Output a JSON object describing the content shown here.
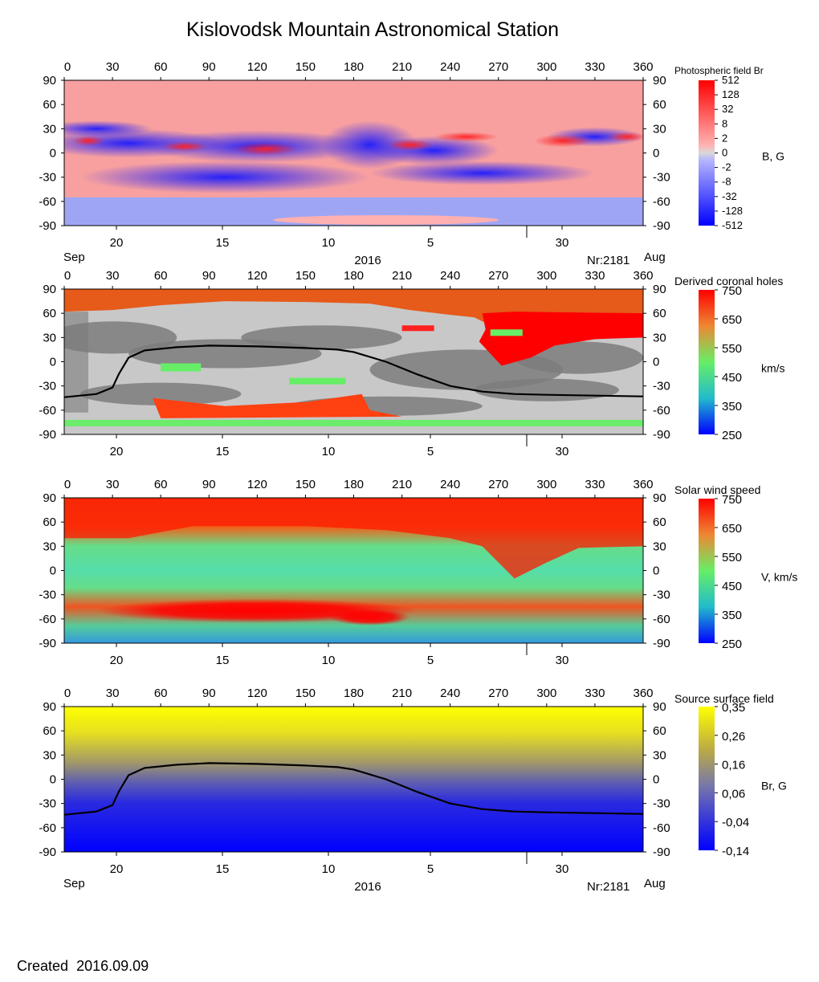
{
  "title": "Kislovodsk Mountain Astronomical Station",
  "footer": {
    "label": "Created",
    "date": "2016.09.09"
  },
  "colors": {
    "field_pos": "#ff2020",
    "field_neg": "#1a1aff",
    "field_zero": "#d8d8d8",
    "ch_light": "#c8c8c8",
    "ch_dark": "#7c7c7c",
    "speed_low": "#0000ff",
    "speed_mid": "#55ee88",
    "speed_high": "#ff0000",
    "ss_pos": "#ffff00",
    "ss_neg": "#0000ff",
    "neutral_line": "#000000"
  },
  "chart_data": [
    {
      "type": "heatmap",
      "title": "Photospheric field Br",
      "colorbar_label": "B, G",
      "colorbar_ticks": [
        "512",
        "128",
        "32",
        "8",
        "2",
        "0",
        "-2",
        "-8",
        "-32",
        "-128",
        "-512"
      ],
      "x_top_ticks": [
        "0",
        "30",
        "60",
        "90",
        "120",
        "150",
        "180",
        "210",
        "240",
        "270",
        "300",
        "330",
        "360"
      ],
      "y_ticks": [
        "90",
        "60",
        "30",
        "0",
        "-30",
        "-60",
        "-90"
      ],
      "x_bottom_ticks": [
        "20",
        "15",
        "10",
        "5",
        "30"
      ],
      "bottom_labels": {
        "left": "Sep",
        "center": "2016",
        "rotation": "Nr:2181",
        "right": "Aug"
      },
      "xlim": [
        0,
        360
      ],
      "ylim": [
        -90,
        90
      ]
    },
    {
      "type": "heatmap",
      "title": "Derived coronal holes",
      "colorbar_label": "km/s",
      "colorbar_ticks": [
        "750",
        "650",
        "550",
        "450",
        "350",
        "250"
      ],
      "x_top_ticks": [
        "0",
        "30",
        "60",
        "90",
        "120",
        "150",
        "180",
        "210",
        "240",
        "270",
        "300",
        "330",
        "360"
      ],
      "y_ticks": [
        "90",
        "60",
        "30",
        "0",
        "-30",
        "-60",
        "-90"
      ],
      "x_bottom_ticks": [
        "20",
        "15",
        "10",
        "5",
        "30"
      ],
      "xlim": [
        0,
        360
      ],
      "ylim": [
        -90,
        90
      ],
      "neutral_line": [
        [
          0,
          -44
        ],
        [
          20,
          -40
        ],
        [
          30,
          -32
        ],
        [
          34,
          -15
        ],
        [
          40,
          5
        ],
        [
          50,
          14
        ],
        [
          70,
          18
        ],
        [
          90,
          20
        ],
        [
          120,
          19
        ],
        [
          150,
          17
        ],
        [
          170,
          15
        ],
        [
          180,
          12
        ],
        [
          200,
          0
        ],
        [
          220,
          -16
        ],
        [
          240,
          -30
        ],
        [
          260,
          -37
        ],
        [
          280,
          -40
        ],
        [
          300,
          -41
        ],
        [
          330,
          -42
        ],
        [
          360,
          -43
        ]
      ]
    },
    {
      "type": "heatmap",
      "title": "Solar wind speed",
      "colorbar_label": "V, km/s",
      "colorbar_ticks": [
        "750",
        "650",
        "550",
        "450",
        "350",
        "250"
      ],
      "x_top_ticks": [
        "0",
        "30",
        "60",
        "90",
        "120",
        "150",
        "180",
        "210",
        "240",
        "270",
        "300",
        "330",
        "360"
      ],
      "y_ticks": [
        "90",
        "60",
        "30",
        "0",
        "-30",
        "-60",
        "-90"
      ],
      "x_bottom_ticks": [
        "20",
        "15",
        "10",
        "5",
        "30"
      ],
      "xlim": [
        0,
        360
      ],
      "ylim": [
        -90,
        90
      ]
    },
    {
      "type": "heatmap",
      "title": "Source surface field",
      "colorbar_label": "Br, G",
      "colorbar_ticks": [
        "0,35",
        "0,26",
        "0,16",
        "0,06",
        "-0,04",
        "-0,14"
      ],
      "x_top_ticks": [
        "0",
        "30",
        "60",
        "90",
        "120",
        "150",
        "180",
        "210",
        "240",
        "270",
        "300",
        "330",
        "360"
      ],
      "y_ticks": [
        "90",
        "60",
        "30",
        "0",
        "-30",
        "-60",
        "-90"
      ],
      "x_bottom_ticks": [
        "20",
        "15",
        "10",
        "5",
        "30"
      ],
      "bottom_labels": {
        "left": "Sep",
        "center": "2016",
        "rotation": "Nr:2181",
        "right": "Aug"
      },
      "xlim": [
        0,
        360
      ],
      "ylim": [
        -90,
        90
      ],
      "neutral_line": [
        [
          0,
          -44
        ],
        [
          20,
          -40
        ],
        [
          30,
          -32
        ],
        [
          34,
          -15
        ],
        [
          40,
          5
        ],
        [
          50,
          14
        ],
        [
          70,
          18
        ],
        [
          90,
          20
        ],
        [
          120,
          19
        ],
        [
          150,
          17
        ],
        [
          170,
          15
        ],
        [
          180,
          12
        ],
        [
          200,
          0
        ],
        [
          220,
          -16
        ],
        [
          240,
          -30
        ],
        [
          260,
          -37
        ],
        [
          280,
          -40
        ],
        [
          300,
          -41
        ],
        [
          330,
          -42
        ],
        [
          360,
          -43
        ]
      ]
    }
  ]
}
